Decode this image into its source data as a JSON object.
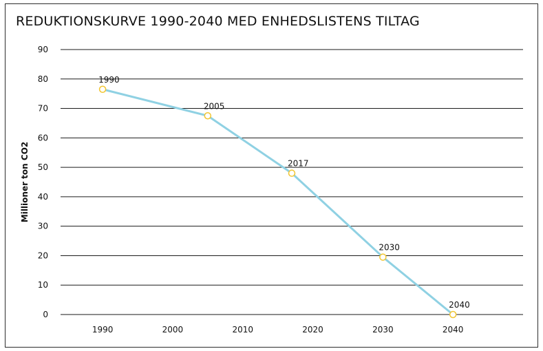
{
  "chart_data": {
    "type": "line",
    "title": "REDUKTIONSKURVE 1990-2040 MED ENHEDSLISTENS TILTAG",
    "xlabel": "",
    "ylabel": "Millioner  ton CO2",
    "x_ticks": [
      "1990",
      "2000",
      "2010",
      "2020",
      "2030",
      "2040"
    ],
    "y_ticks": [
      "0",
      "10",
      "20",
      "30",
      "40",
      "50",
      "60",
      "70",
      "80",
      "90"
    ],
    "xlim": [
      1984,
      2050
    ],
    "ylim": [
      0,
      90
    ],
    "grid": true,
    "series": [
      {
        "color": "#8fd1e3",
        "marker_color": "#f2c530",
        "points": [
          {
            "x": 1990,
            "y": 76.5,
            "label": "1990"
          },
          {
            "x": 2005,
            "y": 67.5,
            "label": "2005"
          },
          {
            "x": 2017,
            "y": 48,
            "label": "2017"
          },
          {
            "x": 2030,
            "y": 19.5,
            "label": "2030"
          },
          {
            "x": 2040,
            "y": 0,
            "label": "2040"
          }
        ]
      }
    ]
  }
}
